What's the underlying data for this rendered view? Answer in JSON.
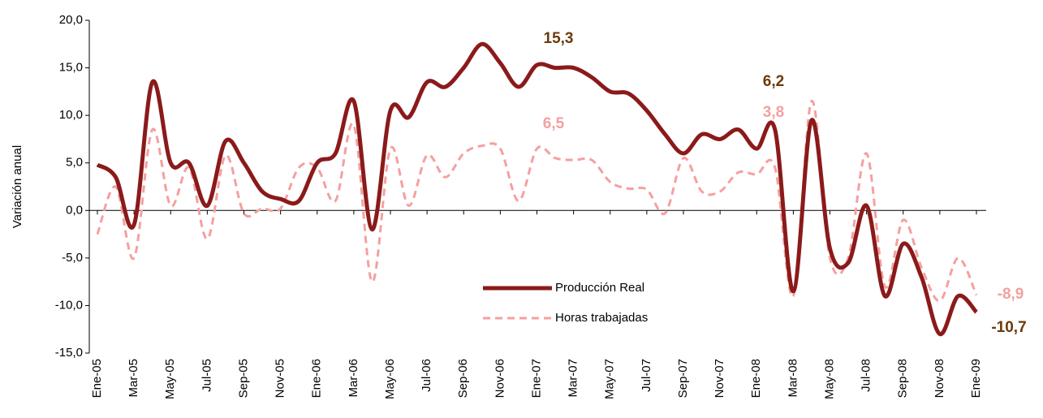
{
  "chart_data": {
    "type": "line",
    "y_label": "Variación anual",
    "categories": [
      "Ene-05",
      null,
      "Mar-05",
      null,
      "May-05",
      null,
      "Jul-05",
      null,
      "Sep-05",
      null,
      "Nov-05",
      null,
      "Ene-06",
      null,
      "Mar-06",
      null,
      "May-06",
      null,
      "Jul-06",
      null,
      "Sep-06",
      null,
      "Nov-06",
      null,
      "Ene-07",
      null,
      "Mar-07",
      null,
      "May-07",
      null,
      "Jul-07",
      null,
      "Sep-07",
      null,
      "Nov-07",
      null,
      "Ene-08",
      null,
      "Mar-08",
      null,
      "May-08",
      null,
      "Jul-08",
      null,
      "Sep-08",
      null,
      "Nov-08",
      null,
      "Ene-09"
    ],
    "series": [
      {
        "name": "Producción Real",
        "color": "#8b1a1a",
        "dash": false,
        "values": [
          4.8,
          3.5,
          -1.5,
          13.5,
          5.0,
          5.0,
          0.5,
          7.3,
          5.0,
          2.0,
          1.2,
          1.0,
          5.0,
          6.0,
          11.5,
          -2.0,
          10.5,
          9.8,
          13.5,
          13.0,
          15.0,
          17.5,
          15.5,
          13.0,
          15.3,
          15.0,
          15.0,
          14.0,
          12.5,
          12.3,
          10.5,
          8.0,
          6.0,
          8.0,
          7.5,
          8.5,
          6.5,
          8.5,
          -8.5,
          9.5,
          -4.0,
          -5.5,
          0.5,
          -9.0,
          -3.5,
          -7.0,
          -13.0,
          -9.0,
          -10.7
        ]
      },
      {
        "name": "Horas trabajadas",
        "color": "#f4a0a0",
        "dash": true,
        "values": [
          -2.5,
          2.5,
          -5.0,
          8.5,
          0.5,
          4.5,
          -3.0,
          5.8,
          -0.3,
          0.2,
          0.2,
          4.5,
          4.5,
          1.0,
          9.0,
          -7.5,
          6.5,
          0.5,
          5.8,
          3.5,
          6.0,
          6.8,
          6.5,
          1.0,
          6.5,
          5.5,
          5.3,
          5.3,
          3.0,
          2.3,
          2.2,
          -0.3,
          5.5,
          2.0,
          2.0,
          4.0,
          3.8,
          4.5,
          -9.0,
          11.5,
          -5.0,
          -5.0,
          6.0,
          -8.0,
          -1.0,
          -6.0,
          -9.5,
          -5.0,
          -8.9
        ]
      }
    ],
    "ylim": [
      -15,
      20
    ],
    "yticks": [
      {
        "value": -15,
        "label": "-15,0"
      },
      {
        "value": -10,
        "label": "-10,0"
      },
      {
        "value": -5,
        "label": "-5,0"
      },
      {
        "value": 0,
        "label": "0,0"
      },
      {
        "value": 5,
        "label": "5,0"
      },
      {
        "value": 10,
        "label": "10,0"
      },
      {
        "value": 15,
        "label": "15,0"
      },
      {
        "value": 20,
        "label": "20,0"
      }
    ],
    "annotations": [
      {
        "text": "15,3",
        "color": "#6b3a0a"
      },
      {
        "text": "6,2",
        "color": "#6b3a0a"
      },
      {
        "text": "6,5",
        "color": "#f4a0a0"
      },
      {
        "text": "3,8",
        "color": "#f4a0a0"
      },
      {
        "text": "-8,9",
        "color": "#f4a0a0"
      },
      {
        "text": "-10,7",
        "color": "#6b3a0a"
      }
    ]
  }
}
